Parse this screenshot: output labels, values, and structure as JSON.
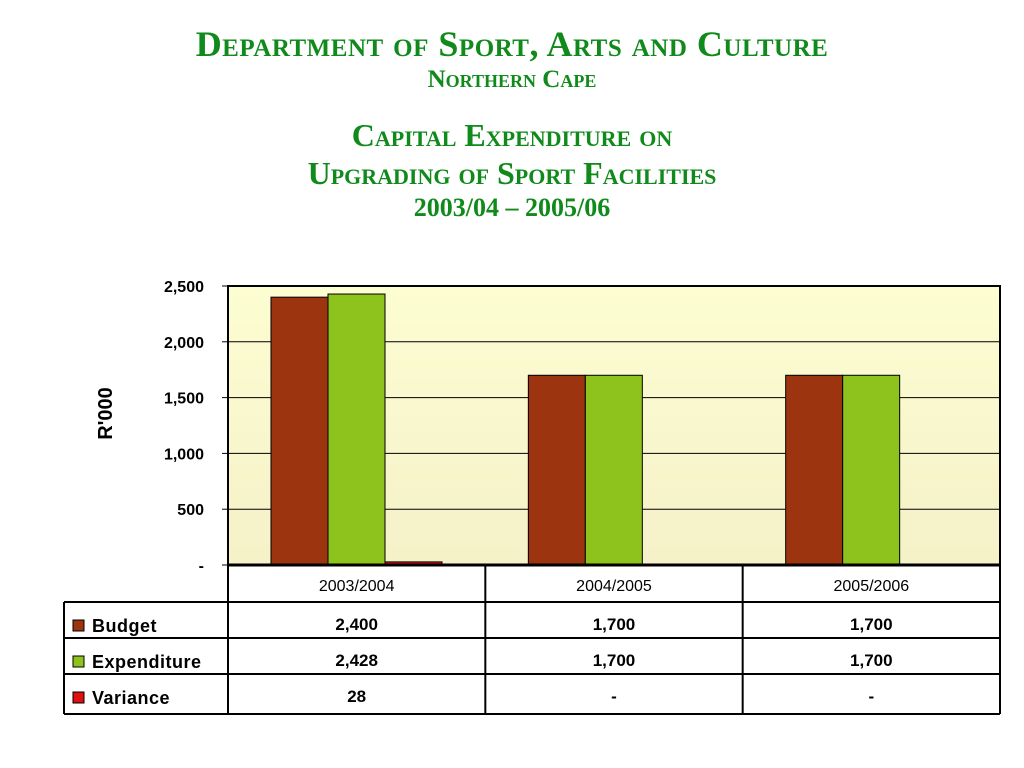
{
  "header": {
    "title": "Department of Sport, Arts and Culture",
    "subtitle": "Northern Cape",
    "chart_title_line1": "Capital Expenditure on",
    "chart_title_line2": "Upgrading of Sport Facilities",
    "chart_period": "2003/04 – 2005/06"
  },
  "colors": {
    "title": "#0f8a1b",
    "plot_background_top": "#fdfdd2",
    "plot_background_bottom": "#f5f1c8",
    "budget": "#9c3410",
    "expenditure": "#8ec21c",
    "variance": "#e01010"
  },
  "chart_data": {
    "type": "bar",
    "title": "Capital Expenditure on Upgrading of Sport Facilities",
    "ylabel": "R'000",
    "xlabel": "",
    "ylim": [
      0,
      2500
    ],
    "y_ticks": [
      0,
      500,
      1000,
      1500,
      2000,
      2500
    ],
    "y_tick_labels": [
      "-",
      "500",
      "1,000",
      "1,500",
      "2,000",
      "2,500"
    ],
    "grid": true,
    "legend": "data-table",
    "categories": [
      "2003/2004",
      "2004/2005",
      "2005/2006"
    ],
    "series": [
      {
        "name": "Budget",
        "values": [
          2400,
          1700,
          1700
        ],
        "labels": [
          "2,400",
          "1,700",
          "1,700"
        ]
      },
      {
        "name": "Expenditure",
        "values": [
          2428,
          1700,
          1700
        ],
        "labels": [
          "2,428",
          "1,700",
          "1,700"
        ]
      },
      {
        "name": "Variance",
        "values": [
          28,
          0,
          0
        ],
        "labels": [
          "28",
          "-",
          "-"
        ]
      }
    ]
  }
}
